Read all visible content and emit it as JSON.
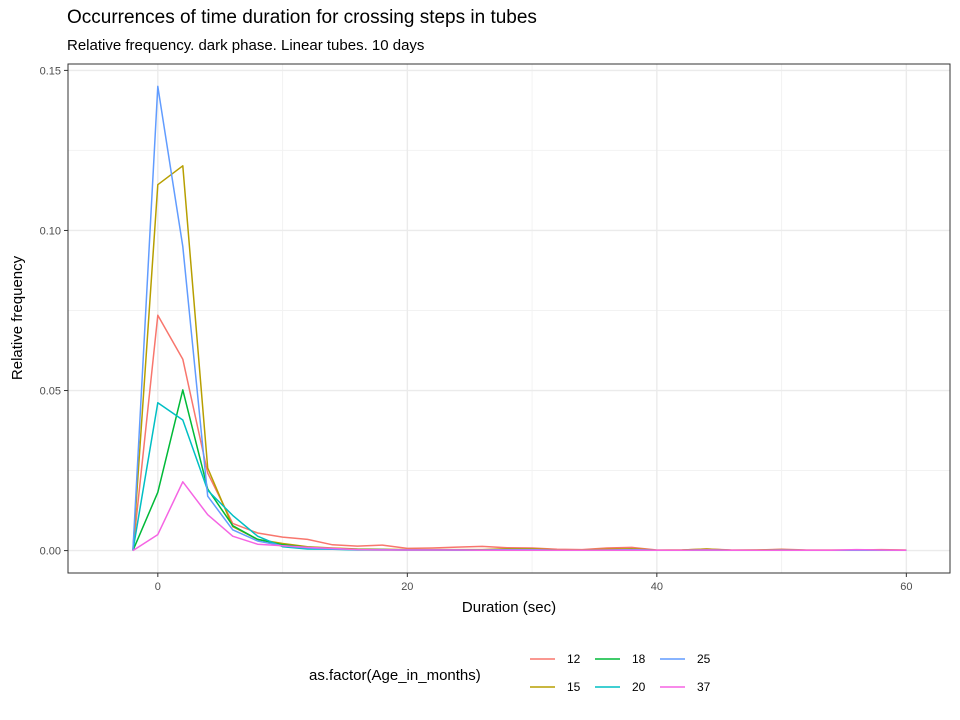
{
  "chart_data": {
    "type": "line",
    "title": "Occurrences of time duration for crossing steps in tubes",
    "subtitle": "Relative frequency. dark phase. Linear tubes. 10 days",
    "xlabel": "Duration (sec)",
    "ylabel": "Relative frequency",
    "xlim": [
      -7.2,
      63.5
    ],
    "ylim": [
      -0.007,
      0.152
    ],
    "x_ticks": [
      0,
      20,
      40,
      60
    ],
    "x_tick_labels": [
      "0",
      "20",
      "40",
      "60"
    ],
    "y_ticks": [
      0.0,
      0.05,
      0.1,
      0.15
    ],
    "y_tick_labels": [
      "0.00",
      "0.05",
      "0.10",
      "0.15"
    ],
    "grid": true,
    "legend_title": "as.factor(Age_in_months)",
    "legend_position": "bottom",
    "series": [
      {
        "name": "12",
        "color": "#F8766D",
        "x": [
          -2,
          0,
          2,
          4,
          6,
          8,
          10,
          12,
          14,
          16,
          18,
          20,
          22,
          24,
          26,
          28,
          30,
          32,
          34,
          36,
          38,
          40,
          42,
          44,
          46,
          48,
          50,
          52,
          54,
          56,
          58,
          60
        ],
        "values": [
          0,
          0.0735,
          0.0598,
          0.0242,
          0.0085,
          0.0055,
          0.0042,
          0.0035,
          0.0018,
          0.0014,
          0.0017,
          0.0007,
          0.0008,
          0.0011,
          0.0013,
          0.0009,
          0.0008,
          0.0004,
          0.0003,
          0.0008,
          0.001,
          0.0002,
          0.0002,
          0.0005,
          0.0002,
          0.0002,
          0.0004,
          0.0002,
          0.0002,
          0.0002,
          0.0003,
          0.0002
        ]
      },
      {
        "name": "15",
        "color": "#B79F00",
        "x": [
          -2,
          0,
          2,
          4,
          6,
          8,
          10,
          12,
          14,
          16,
          18,
          20,
          22,
          24,
          26,
          28,
          30,
          32,
          34,
          36,
          38,
          40,
          42,
          44,
          46,
          48,
          50,
          52,
          54,
          56,
          58,
          60
        ],
        "values": [
          0,
          0.1143,
          0.1202,
          0.0258,
          0.0075,
          0.0035,
          0.0022,
          0.0012,
          0.0008,
          0.0005,
          0.0004,
          0.0003,
          0.0003,
          0.0003,
          0.0003,
          0.0006,
          0.0006,
          0.0002,
          0.0002,
          0.0004,
          0.0006,
          0.0001,
          0.0002,
          0.0005,
          0.0001,
          0.0002,
          0.0003,
          0.0001,
          0.0001,
          0.0001,
          0.0002,
          0.0001
        ]
      },
      {
        "name": "18",
        "color": "#00BA38",
        "x": [
          -2,
          0,
          2,
          4,
          6,
          8,
          10,
          12,
          14,
          16,
          18,
          20,
          22,
          24,
          26,
          28,
          30,
          32,
          34,
          36,
          38,
          40,
          42,
          44,
          46,
          48,
          50,
          52,
          54,
          56,
          58,
          60
        ],
        "values": [
          0,
          0.0182,
          0.0502,
          0.0192,
          0.0078,
          0.0035,
          0.0018,
          0.001,
          0.0006,
          0.0003,
          0.0003,
          0.0002,
          0.0002,
          0.0002,
          0.0001,
          0.0002,
          0.0002,
          0.0001,
          0.0001,
          0.0001,
          0.0002,
          0.0001,
          0.0001,
          0.0002,
          0.0001,
          0.0001,
          0.0001,
          0.0001,
          0.0001,
          0.0001,
          0.0001,
          0.0001
        ]
      },
      {
        "name": "20",
        "color": "#00BFC4",
        "x": [
          -2,
          0,
          2,
          4,
          6,
          8,
          10,
          12,
          14,
          16,
          18,
          20,
          22,
          24,
          26,
          28,
          30,
          32,
          34,
          36,
          38,
          40,
          42,
          44,
          46,
          48,
          50,
          52,
          54,
          56,
          58,
          60
        ],
        "values": [
          0,
          0.0462,
          0.0408,
          0.0188,
          0.011,
          0.0045,
          0.0012,
          0.0005,
          0.0004,
          0.0002,
          0.0002,
          0.0002,
          0.0002,
          0.0001,
          0.0001,
          0.0001,
          0.0001,
          0.0001,
          0.0001,
          0.0001,
          0.0001,
          0.0001,
          0.0001,
          0.0001,
          0.0001,
          0.0001,
          0.0001,
          0.0001,
          0.0001,
          0.0001,
          0.0001,
          0.0001
        ]
      },
      {
        "name": "25",
        "color": "#619CFF",
        "x": [
          -2,
          0,
          2,
          4,
          6,
          8,
          10,
          12,
          14,
          16,
          18,
          20,
          22,
          24,
          26,
          28,
          30,
          32,
          34,
          36,
          38,
          40,
          42,
          44,
          46,
          48,
          50,
          52,
          54,
          56,
          58,
          60
        ],
        "values": [
          0,
          0.145,
          0.095,
          0.017,
          0.0065,
          0.003,
          0.0015,
          0.0008,
          0.0005,
          0.0003,
          0.0003,
          0.0002,
          0.0002,
          0.0002,
          0.0002,
          0.0003,
          0.0003,
          0.0001,
          0.0001,
          0.0002,
          0.0003,
          0.0001,
          0.0001,
          0.0002,
          0.0001,
          0.0001,
          0.0002,
          0.0001,
          0.0001,
          0.0001,
          0.0001,
          0.0001
        ]
      },
      {
        "name": "37",
        "color": "#F564E3",
        "x": [
          -2,
          0,
          2,
          4,
          6,
          8,
          10,
          12,
          14,
          16,
          18,
          20,
          22,
          24,
          26,
          28,
          30,
          32,
          34,
          36,
          38,
          40,
          42,
          44,
          46,
          48,
          50,
          52,
          54,
          56,
          58,
          60
        ],
        "values": [
          0,
          0.005,
          0.0215,
          0.0112,
          0.0045,
          0.002,
          0.0015,
          0.001,
          0.0007,
          0.0003,
          0.0002,
          0.0002,
          0.0002,
          0.0002,
          0.0001,
          0.0001,
          0.0001,
          0.0001,
          0.0001,
          0.0001,
          0.0001,
          0.0001,
          0.0001,
          0.0002,
          0.0001,
          0.0001,
          0.0001,
          0.0001,
          0.0001,
          0.0003,
          0.0002,
          0.0001
        ]
      }
    ]
  }
}
